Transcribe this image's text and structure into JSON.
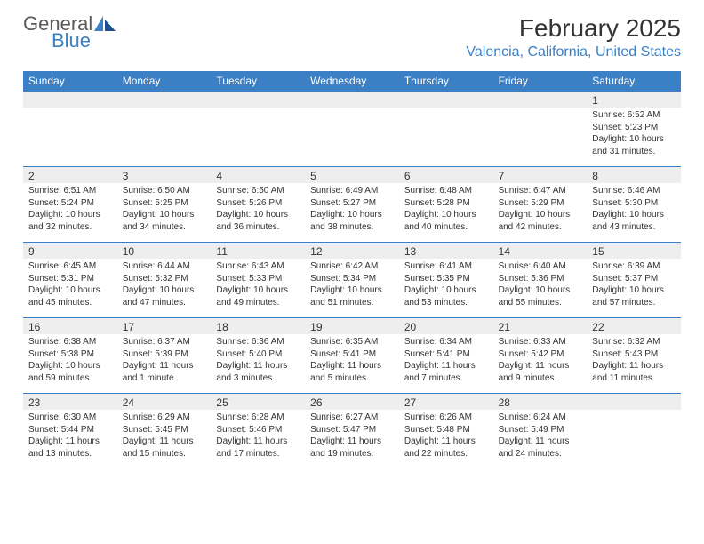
{
  "logo": {
    "word1": "General",
    "word2": "Blue"
  },
  "title": "February 2025",
  "location": "Valencia, California, United States",
  "colors": {
    "accent": "#3b7fc4",
    "header_text": "#ffffff",
    "daynum_bg": "#eeeeee",
    "body_bg": "#ffffff",
    "text": "#333333"
  },
  "day_headers": [
    "Sunday",
    "Monday",
    "Tuesday",
    "Wednesday",
    "Thursday",
    "Friday",
    "Saturday"
  ],
  "weeks": [
    [
      {
        "num": "",
        "sunrise": "",
        "sunset": "",
        "daylight": ""
      },
      {
        "num": "",
        "sunrise": "",
        "sunset": "",
        "daylight": ""
      },
      {
        "num": "",
        "sunrise": "",
        "sunset": "",
        "daylight": ""
      },
      {
        "num": "",
        "sunrise": "",
        "sunset": "",
        "daylight": ""
      },
      {
        "num": "",
        "sunrise": "",
        "sunset": "",
        "daylight": ""
      },
      {
        "num": "",
        "sunrise": "",
        "sunset": "",
        "daylight": ""
      },
      {
        "num": "1",
        "sunrise": "Sunrise: 6:52 AM",
        "sunset": "Sunset: 5:23 PM",
        "daylight": "Daylight: 10 hours and 31 minutes."
      }
    ],
    [
      {
        "num": "2",
        "sunrise": "Sunrise: 6:51 AM",
        "sunset": "Sunset: 5:24 PM",
        "daylight": "Daylight: 10 hours and 32 minutes."
      },
      {
        "num": "3",
        "sunrise": "Sunrise: 6:50 AM",
        "sunset": "Sunset: 5:25 PM",
        "daylight": "Daylight: 10 hours and 34 minutes."
      },
      {
        "num": "4",
        "sunrise": "Sunrise: 6:50 AM",
        "sunset": "Sunset: 5:26 PM",
        "daylight": "Daylight: 10 hours and 36 minutes."
      },
      {
        "num": "5",
        "sunrise": "Sunrise: 6:49 AM",
        "sunset": "Sunset: 5:27 PM",
        "daylight": "Daylight: 10 hours and 38 minutes."
      },
      {
        "num": "6",
        "sunrise": "Sunrise: 6:48 AM",
        "sunset": "Sunset: 5:28 PM",
        "daylight": "Daylight: 10 hours and 40 minutes."
      },
      {
        "num": "7",
        "sunrise": "Sunrise: 6:47 AM",
        "sunset": "Sunset: 5:29 PM",
        "daylight": "Daylight: 10 hours and 42 minutes."
      },
      {
        "num": "8",
        "sunrise": "Sunrise: 6:46 AM",
        "sunset": "Sunset: 5:30 PM",
        "daylight": "Daylight: 10 hours and 43 minutes."
      }
    ],
    [
      {
        "num": "9",
        "sunrise": "Sunrise: 6:45 AM",
        "sunset": "Sunset: 5:31 PM",
        "daylight": "Daylight: 10 hours and 45 minutes."
      },
      {
        "num": "10",
        "sunrise": "Sunrise: 6:44 AM",
        "sunset": "Sunset: 5:32 PM",
        "daylight": "Daylight: 10 hours and 47 minutes."
      },
      {
        "num": "11",
        "sunrise": "Sunrise: 6:43 AM",
        "sunset": "Sunset: 5:33 PM",
        "daylight": "Daylight: 10 hours and 49 minutes."
      },
      {
        "num": "12",
        "sunrise": "Sunrise: 6:42 AM",
        "sunset": "Sunset: 5:34 PM",
        "daylight": "Daylight: 10 hours and 51 minutes."
      },
      {
        "num": "13",
        "sunrise": "Sunrise: 6:41 AM",
        "sunset": "Sunset: 5:35 PM",
        "daylight": "Daylight: 10 hours and 53 minutes."
      },
      {
        "num": "14",
        "sunrise": "Sunrise: 6:40 AM",
        "sunset": "Sunset: 5:36 PM",
        "daylight": "Daylight: 10 hours and 55 minutes."
      },
      {
        "num": "15",
        "sunrise": "Sunrise: 6:39 AM",
        "sunset": "Sunset: 5:37 PM",
        "daylight": "Daylight: 10 hours and 57 minutes."
      }
    ],
    [
      {
        "num": "16",
        "sunrise": "Sunrise: 6:38 AM",
        "sunset": "Sunset: 5:38 PM",
        "daylight": "Daylight: 10 hours and 59 minutes."
      },
      {
        "num": "17",
        "sunrise": "Sunrise: 6:37 AM",
        "sunset": "Sunset: 5:39 PM",
        "daylight": "Daylight: 11 hours and 1 minute."
      },
      {
        "num": "18",
        "sunrise": "Sunrise: 6:36 AM",
        "sunset": "Sunset: 5:40 PM",
        "daylight": "Daylight: 11 hours and 3 minutes."
      },
      {
        "num": "19",
        "sunrise": "Sunrise: 6:35 AM",
        "sunset": "Sunset: 5:41 PM",
        "daylight": "Daylight: 11 hours and 5 minutes."
      },
      {
        "num": "20",
        "sunrise": "Sunrise: 6:34 AM",
        "sunset": "Sunset: 5:41 PM",
        "daylight": "Daylight: 11 hours and 7 minutes."
      },
      {
        "num": "21",
        "sunrise": "Sunrise: 6:33 AM",
        "sunset": "Sunset: 5:42 PM",
        "daylight": "Daylight: 11 hours and 9 minutes."
      },
      {
        "num": "22",
        "sunrise": "Sunrise: 6:32 AM",
        "sunset": "Sunset: 5:43 PM",
        "daylight": "Daylight: 11 hours and 11 minutes."
      }
    ],
    [
      {
        "num": "23",
        "sunrise": "Sunrise: 6:30 AM",
        "sunset": "Sunset: 5:44 PM",
        "daylight": "Daylight: 11 hours and 13 minutes."
      },
      {
        "num": "24",
        "sunrise": "Sunrise: 6:29 AM",
        "sunset": "Sunset: 5:45 PM",
        "daylight": "Daylight: 11 hours and 15 minutes."
      },
      {
        "num": "25",
        "sunrise": "Sunrise: 6:28 AM",
        "sunset": "Sunset: 5:46 PM",
        "daylight": "Daylight: 11 hours and 17 minutes."
      },
      {
        "num": "26",
        "sunrise": "Sunrise: 6:27 AM",
        "sunset": "Sunset: 5:47 PM",
        "daylight": "Daylight: 11 hours and 19 minutes."
      },
      {
        "num": "27",
        "sunrise": "Sunrise: 6:26 AM",
        "sunset": "Sunset: 5:48 PM",
        "daylight": "Daylight: 11 hours and 22 minutes."
      },
      {
        "num": "28",
        "sunrise": "Sunrise: 6:24 AM",
        "sunset": "Sunset: 5:49 PM",
        "daylight": "Daylight: 11 hours and 24 minutes."
      },
      {
        "num": "",
        "sunrise": "",
        "sunset": "",
        "daylight": ""
      }
    ]
  ]
}
